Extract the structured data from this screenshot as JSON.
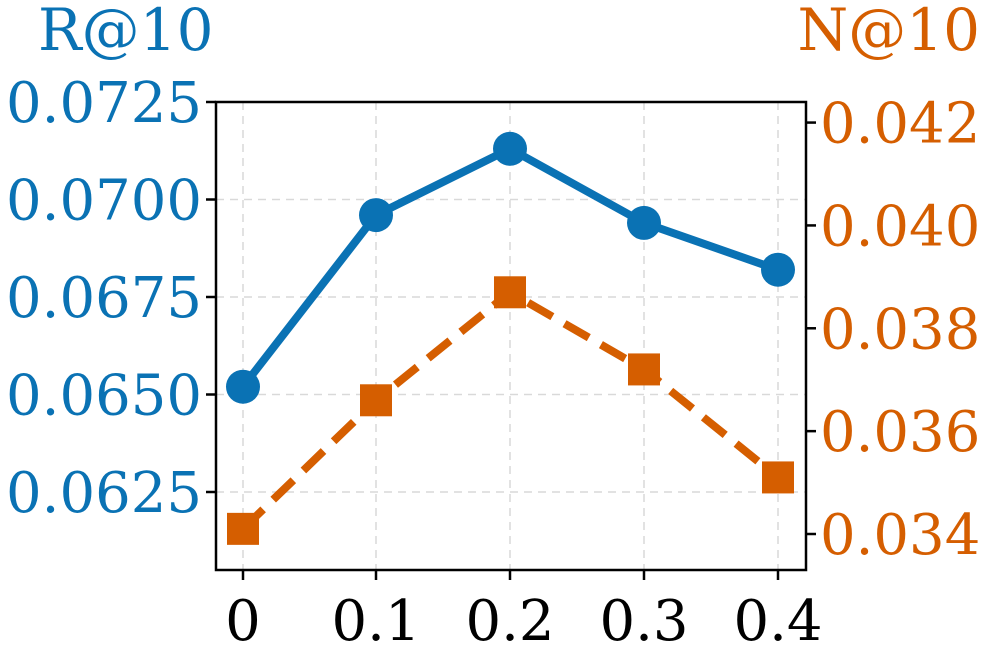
{
  "colors": {
    "left_series": "#0a72b4",
    "right_series": "#d55e00",
    "axis": "#000000",
    "grid": "#d9d9d9"
  },
  "chart_data": {
    "type": "line",
    "categories": [
      "0",
      "0.1",
      "0.2",
      "0.3",
      "0.4"
    ],
    "grid": true,
    "left_axis": {
      "label": "R@10",
      "ylim": [
        0.0605,
        0.0725
      ],
      "ticks": [
        "0.0625",
        "0.0650",
        "0.0675",
        "0.0700",
        "0.0725"
      ]
    },
    "right_axis": {
      "label": "N@10",
      "ylim": [
        0.0333,
        0.0424
      ],
      "ticks": [
        "0.034",
        "0.036",
        "0.038",
        "0.040",
        "0.042"
      ]
    },
    "series": [
      {
        "axis": "left",
        "style": "solid",
        "marker": "circle",
        "color": "#0a72b4",
        "values": [
          0.0652,
          0.0696,
          0.0713,
          0.0694,
          0.0682
        ]
      },
      {
        "axis": "right",
        "style": "dashed",
        "marker": "square",
        "color": "#d55e00",
        "values": [
          0.0341,
          0.0366,
          0.0387,
          0.0372,
          0.0351
        ]
      }
    ]
  }
}
